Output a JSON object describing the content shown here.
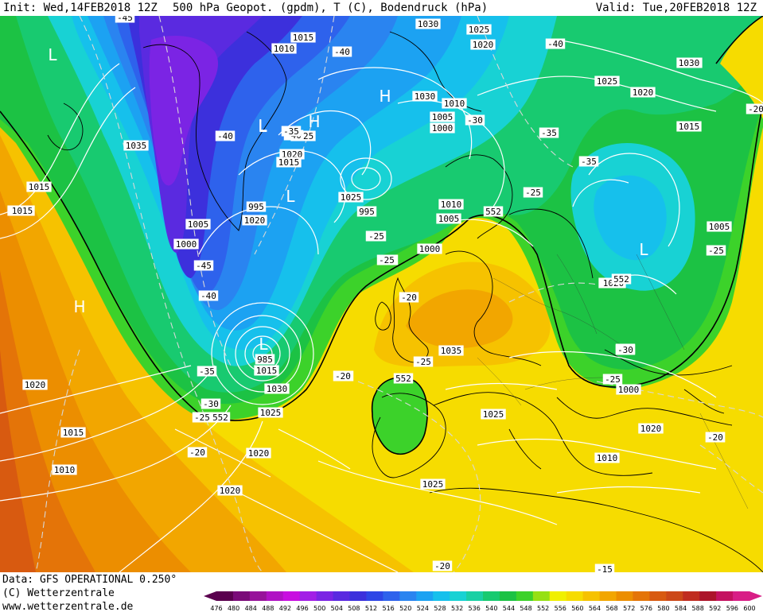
{
  "header": {
    "init": "Init: Wed,14FEB2018 12Z",
    "title": "500 hPa Geopot. (gpdm), T (C), Bodendruck (hPa)",
    "valid": "Valid: Tue,20FEB2018 12Z"
  },
  "footer": {
    "source": "Data: GFS OPERATIONAL 0.250°",
    "copyright": "(C) Wetterzentrale",
    "website": "www.wetterzentrale.de"
  },
  "scale": {
    "values": [
      476,
      480,
      484,
      488,
      492,
      496,
      500,
      504,
      508,
      512,
      516,
      520,
      524,
      528,
      532,
      536,
      540,
      544,
      548,
      552,
      556,
      560,
      564,
      568,
      572,
      576,
      580,
      584,
      588,
      592,
      596,
      600
    ],
    "colors": [
      "#5a004e",
      "#7a0a78",
      "#97139a",
      "#b012c4",
      "#c80ee0",
      "#a21ee6",
      "#7b24e4",
      "#5a2ae0",
      "#3c30dc",
      "#2e46e6",
      "#2e62ec",
      "#2a84f0",
      "#1ca2f2",
      "#16c0ec",
      "#18d2d4",
      "#1ad0a4",
      "#18ca70",
      "#1cc244",
      "#3cd22a",
      "#96e014",
      "#f0f000",
      "#f6dc00",
      "#f6c200",
      "#f2a600",
      "#ec8e00",
      "#e47408",
      "#d85a10",
      "#cc4818",
      "#c02c20",
      "#ac142a",
      "#c41260",
      "#d81e86"
    ]
  },
  "pressure_labels": [
    "1030",
    "1025",
    "1020",
    "1015",
    "1010",
    "1035",
    "1015",
    "1020",
    "1005",
    "1000",
    "995",
    "985",
    "1025",
    "1020",
    "1015",
    "1010",
    "1005",
    "1000",
    "1030",
    "1025",
    "1020",
    "1015",
    "1010",
    "1005",
    "1000",
    "995",
    "1025",
    "1020",
    "1015",
    "1030",
    "1025",
    "1020",
    "1020",
    "1015",
    "1010",
    "1020",
    "1015",
    "1010",
    "1005",
    "1000",
    "1015",
    "1010",
    "1025",
    "1020",
    "1035",
    "1030",
    "1025",
    "1020",
    "1020",
    "1030"
  ],
  "temperature_labels": [
    "-45",
    "-40",
    "-40",
    "-45",
    "-40",
    "-35",
    "-30",
    "-25",
    "-20",
    "-40",
    "-35",
    "-30",
    "-25",
    "-20",
    "-30",
    "-25",
    "-20",
    "-35",
    "-25",
    "-25",
    "-30",
    "-20",
    "-25",
    "-20",
    "-15",
    "-20",
    "-40",
    "-35",
    "-30",
    "-25",
    "-20",
    "-25",
    "-20"
  ],
  "geopotential_labels": [
    "552",
    "552",
    "552",
    "552"
  ],
  "pressure_centers": [
    "L",
    "L",
    "L",
    "L",
    "L",
    "H",
    "H",
    "L",
    "H"
  ]
}
